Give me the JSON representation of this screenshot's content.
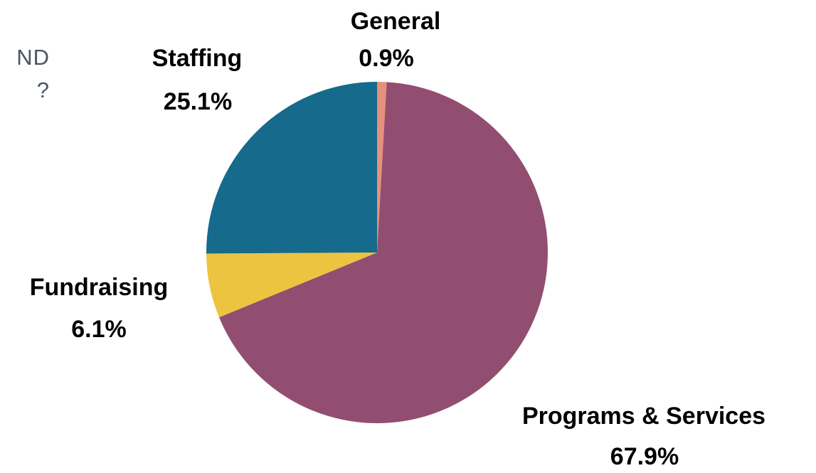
{
  "heading_fragment": {
    "line1": "ND",
    "line2": "?"
  },
  "chart_data": {
    "type": "pie",
    "slices": [
      {
        "name": "General",
        "value": 0.9,
        "label": "0.9%",
        "color": "#e9907c"
      },
      {
        "name": "Programs & Services",
        "value": 67.9,
        "label": "67.9%",
        "color": "#924e71"
      },
      {
        "name": "Fundraising",
        "value": 6.1,
        "label": "6.1%",
        "color": "#ecc440"
      },
      {
        "name": "Staffing",
        "value": 25.1,
        "label": "25.1%",
        "color": "#166a8c"
      }
    ],
    "start_angle": "12 o'clock",
    "direction": "clockwise",
    "legend": "none (labels outside slices)"
  }
}
